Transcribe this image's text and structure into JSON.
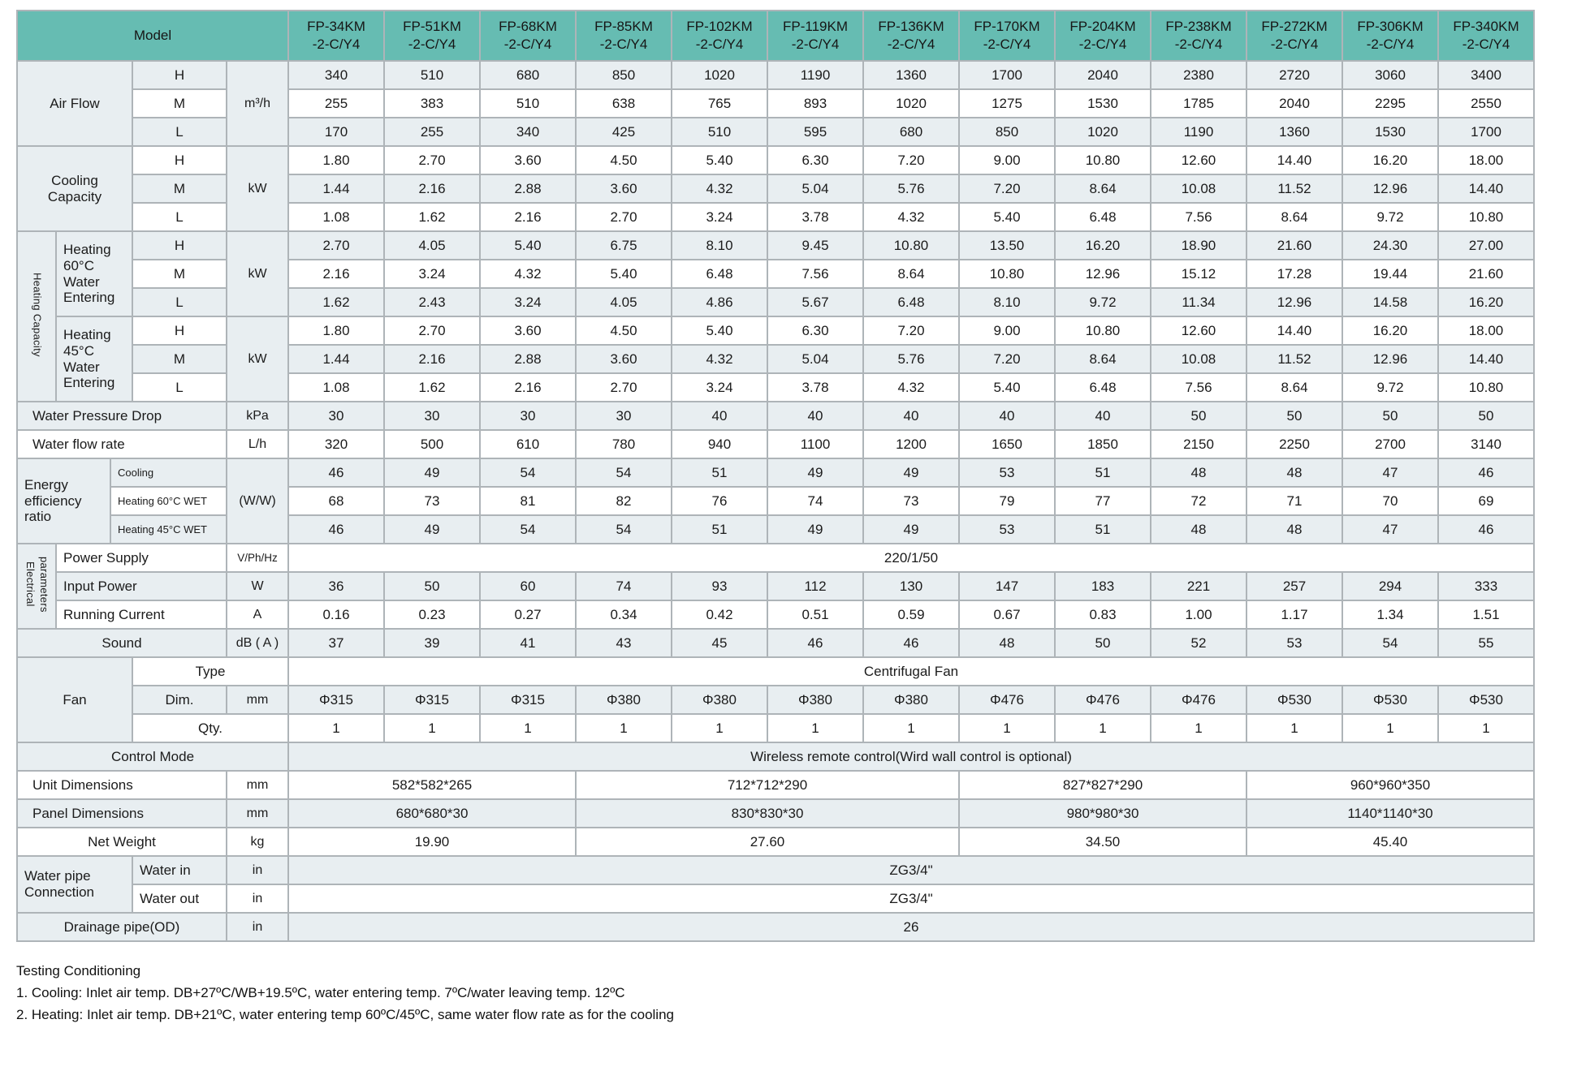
{
  "table": {
    "header": {
      "model_label": "Model",
      "models": [
        "FP-34KM\n-2-C/Y4",
        "FP-51KM\n-2-C/Y4",
        "FP-68KM\n-2-C/Y4",
        "FP-85KM\n-2-C/Y4",
        "FP-102KM\n-2-C/Y4",
        "FP-119KM\n-2-C/Y4",
        "FP-136KM\n-2-C/Y4",
        "FP-170KM\n-2-C/Y4",
        "FP-204KM\n-2-C/Y4",
        "FP-238KM\n-2-C/Y4",
        "FP-272KM\n-2-C/Y4",
        "FP-306KM\n-2-C/Y4",
        "FP-340KM\n-2-C/Y4"
      ]
    },
    "rows": [
      {
        "s": 1,
        "cells": [
          {
            "t": "Air Flow",
            "cs": 3,
            "rs": 3,
            "k": "label"
          },
          {
            "t": "H",
            "k": "sub"
          },
          {
            "t": "m³/h",
            "rs": 3,
            "k": "unit"
          },
          "340",
          "510",
          "680",
          "850",
          "1020",
          "1190",
          "1360",
          "1700",
          "2040",
          "2380",
          "2720",
          "3060",
          "3400"
        ]
      },
      {
        "s": 0,
        "cells": [
          {
            "t": "M",
            "k": "sub"
          },
          "255",
          "383",
          "510",
          "638",
          "765",
          "893",
          "1020",
          "1275",
          "1530",
          "1785",
          "2040",
          "2295",
          "2550"
        ]
      },
      {
        "s": 1,
        "cells": [
          {
            "t": "L",
            "k": "sub"
          },
          "170",
          "255",
          "340",
          "425",
          "510",
          "595",
          "680",
          "850",
          "1020",
          "1190",
          "1360",
          "1530",
          "1700"
        ]
      },
      {
        "s": 0,
        "cells": [
          {
            "t": "Cooling\nCapacity",
            "cs": 3,
            "rs": 3,
            "k": "label"
          },
          {
            "t": "H",
            "k": "sub"
          },
          {
            "t": "kW",
            "rs": 3,
            "k": "unit"
          },
          "1.80",
          "2.70",
          "3.60",
          "4.50",
          "5.40",
          "6.30",
          "7.20",
          "9.00",
          "10.80",
          "12.60",
          "14.40",
          "16.20",
          "18.00"
        ]
      },
      {
        "s": 1,
        "cells": [
          {
            "t": "M",
            "k": "sub"
          },
          "1.44",
          "2.16",
          "2.88",
          "3.60",
          "4.32",
          "5.04",
          "5.76",
          "7.20",
          "8.64",
          "10.08",
          "11.52",
          "12.96",
          "14.40"
        ]
      },
      {
        "s": 0,
        "cells": [
          {
            "t": "L",
            "k": "sub"
          },
          "1.08",
          "1.62",
          "2.16",
          "2.70",
          "3.24",
          "3.78",
          "4.32",
          "5.40",
          "6.48",
          "7.56",
          "8.64",
          "9.72",
          "10.80"
        ]
      },
      {
        "s": 1,
        "cells": [
          {
            "t": "Heating Capacity",
            "rs": 6,
            "k": "vlabel"
          },
          {
            "t": "Heating\n60°C\nWater\nEntering",
            "cs": 2,
            "rs": 3,
            "k": "label",
            "a": 1
          },
          {
            "t": "H",
            "k": "sub"
          },
          {
            "t": "kW",
            "rs": 3,
            "k": "unit"
          },
          "2.70",
          "4.05",
          "5.40",
          "6.75",
          "8.10",
          "9.45",
          "10.80",
          "13.50",
          "16.20",
          "18.90",
          "21.60",
          "24.30",
          "27.00"
        ]
      },
      {
        "s": 0,
        "cells": [
          {
            "t": "M",
            "k": "sub"
          },
          "2.16",
          "3.24",
          "4.32",
          "5.40",
          "6.48",
          "7.56",
          "8.64",
          "10.80",
          "12.96",
          "15.12",
          "17.28",
          "19.44",
          "21.60"
        ]
      },
      {
        "s": 1,
        "cells": [
          {
            "t": "L",
            "k": "sub"
          },
          "1.62",
          "2.43",
          "3.24",
          "4.05",
          "4.86",
          "5.67",
          "6.48",
          "8.10",
          "9.72",
          "11.34",
          "12.96",
          "14.58",
          "16.20"
        ]
      },
      {
        "s": 0,
        "cells": [
          {
            "t": "Heating\n45°C\nWater\nEntering",
            "cs": 2,
            "rs": 3,
            "k": "label",
            "a": 1
          },
          {
            "t": "H",
            "k": "sub"
          },
          {
            "t": "kW",
            "rs": 3,
            "k": "unit"
          },
          "1.80",
          "2.70",
          "3.60",
          "4.50",
          "5.40",
          "6.30",
          "7.20",
          "9.00",
          "10.80",
          "12.60",
          "14.40",
          "16.20",
          "18.00"
        ]
      },
      {
        "s": 1,
        "cells": [
          {
            "t": "M",
            "k": "sub"
          },
          "1.44",
          "2.16",
          "2.88",
          "3.60",
          "4.32",
          "5.04",
          "5.76",
          "7.20",
          "8.64",
          "10.08",
          "11.52",
          "12.96",
          "14.40"
        ]
      },
      {
        "s": 0,
        "cells": [
          {
            "t": "L",
            "k": "sub"
          },
          "1.08",
          "1.62",
          "2.16",
          "2.70",
          "3.24",
          "3.78",
          "4.32",
          "5.40",
          "6.48",
          "7.56",
          "8.64",
          "9.72",
          "10.80"
        ]
      },
      {
        "s": 1,
        "cells": [
          {
            "t": "Water Pressure Drop",
            "cs": 4,
            "k": "label",
            "a": 2
          },
          {
            "t": "kPa",
            "k": "unit"
          },
          "30",
          "30",
          "30",
          "30",
          "40",
          "40",
          "40",
          "40",
          "40",
          "50",
          "50",
          "50",
          "50"
        ]
      },
      {
        "s": 0,
        "cells": [
          {
            "t": "Water flow rate",
            "cs": 4,
            "k": "label",
            "a": 2
          },
          {
            "t": "L/h",
            "k": "unit"
          },
          "320",
          "500",
          "610",
          "780",
          "940",
          "1100",
          "1200",
          "1650",
          "1850",
          "2150",
          "2250",
          "2700",
          "3140"
        ]
      },
      {
        "s": 1,
        "cells": [
          {
            "t": "Energy\nefficiency\nratio",
            "cs": 2,
            "rs": 3,
            "k": "label",
            "a": 1
          },
          {
            "t": "Cooling",
            "cs": 2,
            "k": "subsmall",
            "a": 1
          },
          {
            "t": "(W/W)",
            "rs": 3,
            "k": "unit"
          },
          "46",
          "49",
          "54",
          "54",
          "51",
          "49",
          "49",
          "53",
          "51",
          "48",
          "48",
          "47",
          "46"
        ]
      },
      {
        "s": 0,
        "cells": [
          {
            "t": "Heating 60°C WET",
            "cs": 2,
            "k": "subsmall",
            "a": 1
          },
          "68",
          "73",
          "81",
          "82",
          "76",
          "74",
          "73",
          "79",
          "77",
          "72",
          "71",
          "70",
          "69"
        ]
      },
      {
        "s": 1,
        "cells": [
          {
            "t": "Heating 45°C WET",
            "cs": 2,
            "k": "subsmall",
            "a": 1
          },
          "46",
          "49",
          "54",
          "54",
          "51",
          "49",
          "49",
          "53",
          "51",
          "48",
          "48",
          "47",
          "46"
        ]
      },
      {
        "s": 0,
        "cells": [
          {
            "t": "Electrical\nparameters",
            "rs": 3,
            "k": "vlabel"
          },
          {
            "t": "Power Supply",
            "cs": 3,
            "k": "label",
            "a": 1
          },
          {
            "t": "V/Ph/Hz",
            "k": "unitsmall"
          },
          {
            "t": "220/1/50",
            "cs": 13
          }
        ]
      },
      {
        "s": 1,
        "cells": [
          {
            "t": "Input Power",
            "cs": 3,
            "k": "label",
            "a": 1
          },
          {
            "t": "W",
            "k": "unit"
          },
          "36",
          "50",
          "60",
          "74",
          "93",
          "112",
          "130",
          "147",
          "183",
          "221",
          "257",
          "294",
          "333"
        ]
      },
      {
        "s": 0,
        "cells": [
          {
            "t": "Running Current",
            "cs": 3,
            "k": "label",
            "a": 1
          },
          {
            "t": "A",
            "k": "unit"
          },
          "0.16",
          "0.23",
          "0.27",
          "0.34",
          "0.42",
          "0.51",
          "0.59",
          "0.67",
          "0.83",
          "1.00",
          "1.17",
          "1.34",
          "1.51"
        ]
      },
      {
        "s": 1,
        "cells": [
          {
            "t": "Sound",
            "cs": 4,
            "k": "label"
          },
          {
            "t": "dB ( A )",
            "k": "unit"
          },
          "37",
          "39",
          "41",
          "43",
          "45",
          "46",
          "46",
          "48",
          "50",
          "52",
          "53",
          "54",
          "55"
        ]
      },
      {
        "s": 0,
        "cells": [
          {
            "t": "Fan",
            "cs": 3,
            "rs": 3,
            "k": "label"
          },
          {
            "t": "Type",
            "cs": 2,
            "k": "sub"
          },
          {
            "t": "Centrifugal Fan",
            "cs": 13
          }
        ]
      },
      {
        "s": 1,
        "cells": [
          {
            "t": "Dim.",
            "k": "sub"
          },
          {
            "t": "mm",
            "k": "unit"
          },
          "Φ315",
          "Φ315",
          "Φ315",
          "Φ380",
          "Φ380",
          "Φ380",
          "Φ380",
          "Φ476",
          "Φ476",
          "Φ476",
          "Φ530",
          "Φ530",
          "Φ530"
        ]
      },
      {
        "s": 0,
        "cells": [
          {
            "t": "Qty.",
            "cs": 2,
            "k": "sub"
          },
          "1",
          "1",
          "1",
          "1",
          "1",
          "1",
          "1",
          "1",
          "1",
          "1",
          "1",
          "1",
          "1"
        ]
      },
      {
        "s": 1,
        "cells": [
          {
            "t": "Control Mode",
            "cs": 5,
            "k": "label"
          },
          {
            "t": "Wireless remote control(Wird wall control is optional)",
            "cs": 13
          }
        ]
      },
      {
        "s": 0,
        "cells": [
          {
            "t": "Unit Dimensions",
            "cs": 4,
            "k": "label",
            "a": 2
          },
          {
            "t": "mm",
            "k": "unit"
          },
          {
            "t": "582*582*265",
            "cs": 3
          },
          {
            "t": "712*712*290",
            "cs": 4
          },
          {
            "t": "827*827*290",
            "cs": 3
          },
          {
            "t": "960*960*350",
            "cs": 3
          }
        ]
      },
      {
        "s": 1,
        "cells": [
          {
            "t": "Panel Dimensions",
            "cs": 4,
            "k": "label",
            "a": 2
          },
          {
            "t": "mm",
            "k": "unit"
          },
          {
            "t": "680*680*30",
            "cs": 3
          },
          {
            "t": "830*830*30",
            "cs": 4
          },
          {
            "t": "980*980*30",
            "cs": 3
          },
          {
            "t": "1140*1140*30",
            "cs": 3
          }
        ]
      },
      {
        "s": 0,
        "cells": [
          {
            "t": "Net Weight",
            "cs": 4,
            "k": "label"
          },
          {
            "t": "kg",
            "k": "unit"
          },
          {
            "t": "19.90",
            "cs": 3
          },
          {
            "t": "27.60",
            "cs": 4
          },
          {
            "t": "34.50",
            "cs": 3
          },
          {
            "t": "45.40",
            "cs": 3
          }
        ]
      },
      {
        "s": 1,
        "cells": [
          {
            "t": "Water pipe\nConnection",
            "cs": 3,
            "rs": 2,
            "k": "label",
            "a": 1
          },
          {
            "t": "Water in",
            "k": "sub",
            "a": 1
          },
          {
            "t": "in",
            "k": "unit"
          },
          {
            "t": "ZG3/4\"",
            "cs": 13
          }
        ]
      },
      {
        "s": 0,
        "cells": [
          {
            "t": "Water out",
            "k": "sub",
            "a": 1
          },
          {
            "t": "in",
            "k": "unit"
          },
          {
            "t": "ZG3/4\"",
            "cs": 13
          }
        ]
      },
      {
        "s": 1,
        "cells": [
          {
            "t": "Drainage pipe(OD)",
            "cs": 4,
            "k": "label"
          },
          {
            "t": "in",
            "k": "unit"
          },
          {
            "t": "26",
            "cs": 13
          }
        ]
      }
    ]
  },
  "notes": {
    "title": "Testing Conditioning",
    "line1": "1. Cooling: Inlet air temp. DB+27ºC/WB+19.5ºC, water entering temp. 7ºC/water leaving temp. 12ºC",
    "line2": "2. Heating: Inlet air temp. DB+21ºC, water entering temp 60ºC/45ºC, same water flow rate as for the cooling"
  },
  "colors": {
    "header_teal": "#66bcb2",
    "row_shade": "#e8eef1",
    "border": "#aeb4b8"
  }
}
